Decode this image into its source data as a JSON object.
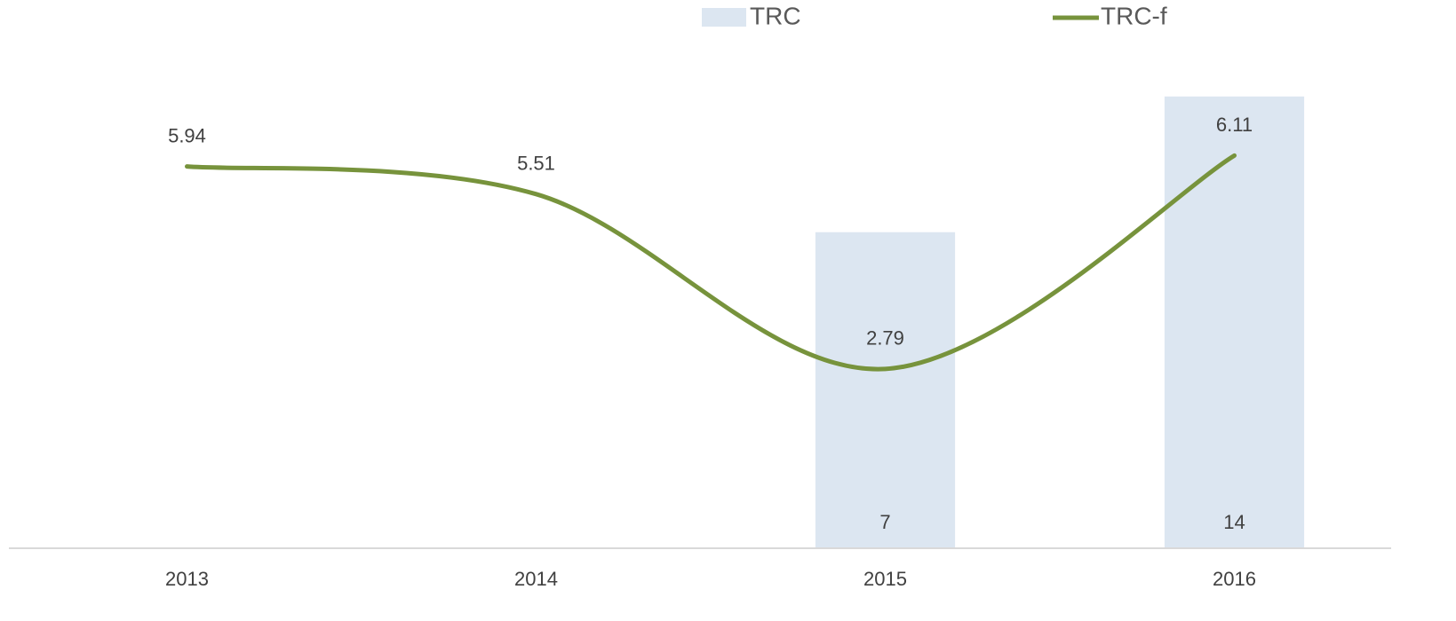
{
  "chart_data": {
    "type": "combo",
    "categories": [
      "2013",
      "2014",
      "2015",
      "2016"
    ],
    "series": [
      {
        "name": "TRC",
        "type": "bar",
        "color": "#dce6f1",
        "values": [
          null,
          null,
          7,
          14
        ]
      },
      {
        "name": "TRC-f",
        "type": "line",
        "axis": "y2",
        "color": "#77933c",
        "values": [
          5.94,
          5.51,
          2.79,
          6.11
        ]
      }
    ],
    "ylim": [
      -9.3,
      14.4
    ],
    "y2lim": [
      0,
      7.15
    ],
    "data_labels": true,
    "smooth": true,
    "legend": "top"
  }
}
